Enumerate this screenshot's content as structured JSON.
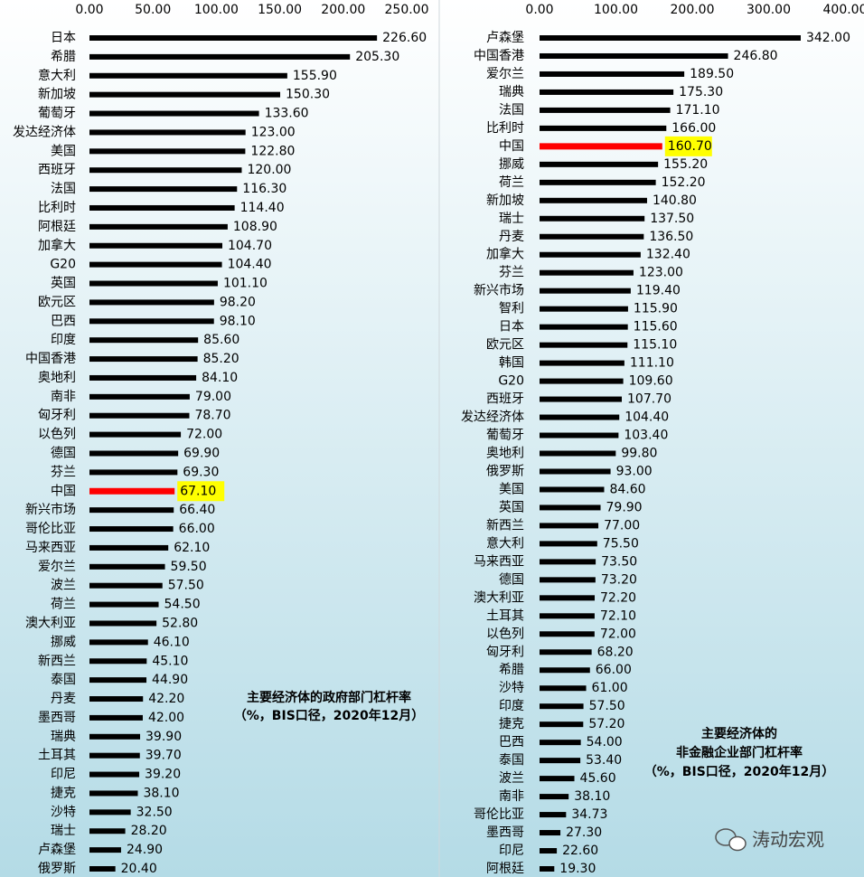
{
  "chart_data": [
    {
      "type": "bar",
      "orientation": "horizontal",
      "title": [
        "主要经济体的政府部门杠杆率",
        "（%，BIS口径，2020年12月）"
      ],
      "categories": [
        "日本",
        "希腊",
        "意大利",
        "新加坡",
        "葡萄牙",
        "发达经济体",
        "美国",
        "西班牙",
        "法国",
        "比利时",
        "阿根廷",
        "加拿大",
        "G20",
        "英国",
        "欧元区",
        "巴西",
        "印度",
        "中国香港",
        "奥地利",
        "南非",
        "匈牙利",
        "以色列",
        "德国",
        "芬兰",
        "中国",
        "新兴市场",
        "哥伦比亚",
        "马来西亚",
        "爱尔兰",
        "波兰",
        "荷兰",
        "澳大利亚",
        "挪威",
        "新西兰",
        "泰国",
        "丹麦",
        "墨西哥",
        "瑞典",
        "土耳其",
        "印尼",
        "捷克",
        "沙特",
        "瑞士",
        "卢森堡",
        "俄罗斯"
      ],
      "values": [
        226.6,
        205.3,
        155.9,
        150.3,
        133.6,
        123,
        122.8,
        120,
        116.3,
        114.4,
        108.9,
        104.7,
        104.4,
        101.1,
        98.2,
        98.1,
        85.6,
        85.2,
        84.1,
        79,
        78.7,
        72,
        69.9,
        69.3,
        67.1,
        66.4,
        66,
        62.1,
        59.5,
        57.5,
        54.5,
        52.8,
        46.1,
        45.1,
        44.9,
        42.2,
        42,
        39.9,
        39.7,
        39.2,
        38.1,
        32.5,
        28.2,
        24.9,
        20.4
      ],
      "value_labels": [
        "226.60",
        "205.30",
        "155.90",
        "150.30",
        "133.60",
        "123.00",
        "122.80",
        "120.00",
        "116.30",
        "114.40",
        "108.90",
        "104.70",
        "104.40",
        "101.10",
        "98.20",
        "98.10",
        "85.60",
        "85.20",
        "84.10",
        "79.00",
        "78.70",
        "72.00",
        "69.90",
        "69.30",
        "67.10",
        "66.40",
        "66.00",
        "62.10",
        "59.50",
        "57.50",
        "54.50",
        "52.80",
        "46.10",
        "45.10",
        "44.90",
        "42.20",
        "42.00",
        "39.90",
        "39.70",
        "39.20",
        "38.10",
        "32.50",
        "28.20",
        "24.90",
        "20.40"
      ],
      "color": "#000000",
      "colors": [
        "#000000",
        "#000000",
        "#000000",
        "#000000",
        "#000000",
        "#000000",
        "#000000",
        "#000000",
        "#000000",
        "#000000",
        "#000000",
        "#000000",
        "#000000",
        "#000000",
        "#000000",
        "#000000",
        "#000000",
        "#000000",
        "#000000",
        "#000000",
        "#000000",
        "#000000",
        "#000000",
        "#000000",
        "#ff0000",
        "#000000",
        "#000000",
        "#000000",
        "#000000",
        "#000000",
        "#000000",
        "#000000",
        "#000000",
        "#000000",
        "#000000",
        "#000000",
        "#000000",
        "#000000",
        "#000000",
        "#000000",
        "#000000",
        "#000000",
        "#000000",
        "#000000",
        "#000000"
      ],
      "label_highlight": "#ffff00",
      "xlim": [
        0,
        250
      ],
      "xticks": [
        {
          "value": 0,
          "label": "0.00"
        },
        {
          "value": 50,
          "label": "50.00"
        },
        {
          "value": 100,
          "label": "100.00"
        },
        {
          "value": 150,
          "label": "150.00"
        },
        {
          "value": 200,
          "label": "200.00"
        },
        {
          "value": 250,
          "label": "250.00"
        }
      ]
    },
    {
      "type": "bar",
      "orientation": "horizontal",
      "title": [
        "主要经济体的",
        "非金融企业部门杠杆率",
        "（%，BIS口径，2020年12月）"
      ],
      "categories": [
        "卢森堡",
        "中国香港",
        "爱尔兰",
        "瑞典",
        "法国",
        "比利时",
        "中国",
        "挪威",
        "荷兰",
        "新加坡",
        "瑞士",
        "丹麦",
        "加拿大",
        "芬兰",
        "新兴市场",
        "智利",
        "日本",
        "欧元区",
        "韩国",
        "G20",
        "西班牙",
        "发达经济体",
        "葡萄牙",
        "奥地利",
        "俄罗斯",
        "美国",
        "英国",
        "新西兰",
        "意大利",
        "马来西亚",
        "德国",
        "澳大利亚",
        "土耳其",
        "以色列",
        "匈牙利",
        "希腊",
        "沙特",
        "印度",
        "捷克",
        "巴西",
        "泰国",
        "波兰",
        "南非",
        "哥伦比亚",
        "墨西哥",
        "印尼",
        "阿根廷"
      ],
      "values": [
        342,
        246.8,
        189.5,
        175.3,
        171.1,
        166,
        160.7,
        155.2,
        152.2,
        140.8,
        137.5,
        136.5,
        132.4,
        123,
        119.4,
        115.9,
        115.6,
        115.1,
        111.1,
        109.6,
        107.7,
        104.4,
        103.4,
        99.8,
        93,
        84.6,
        79.9,
        77,
        75.5,
        73.5,
        73.2,
        72.2,
        72.1,
        72,
        68.2,
        66,
        61,
        57.5,
        57.2,
        54,
        53.4,
        45.6,
        38.1,
        34.73,
        27.3,
        22.6,
        19.3
      ],
      "value_labels": [
        "342.00",
        "246.80",
        "189.50",
        "175.30",
        "171.10",
        "166.00",
        "160.70",
        "155.20",
        "152.20",
        "140.80",
        "137.50",
        "136.50",
        "132.40",
        "123.00",
        "119.40",
        "115.90",
        "115.60",
        "115.10",
        "111.10",
        "109.60",
        "107.70",
        "104.40",
        "103.40",
        "99.80",
        "93.00",
        "84.60",
        "79.90",
        "77.00",
        "75.50",
        "73.50",
        "73.20",
        "72.20",
        "72.10",
        "72.00",
        "68.20",
        "66.00",
        "61.00",
        "57.50",
        "57.20",
        "54.00",
        "53.40",
        "45.60",
        "38.10",
        "34.73",
        "27.30",
        "22.60",
        "19.30"
      ],
      "color": "#000000",
      "colors": [
        "#000000",
        "#000000",
        "#000000",
        "#000000",
        "#000000",
        "#000000",
        "#ff0000",
        "#000000",
        "#000000",
        "#000000",
        "#000000",
        "#000000",
        "#000000",
        "#000000",
        "#000000",
        "#000000",
        "#000000",
        "#000000",
        "#000000",
        "#000000",
        "#000000",
        "#000000",
        "#000000",
        "#000000",
        "#000000",
        "#000000",
        "#000000",
        "#000000",
        "#000000",
        "#000000",
        "#000000",
        "#000000",
        "#000000",
        "#000000",
        "#000000",
        "#000000",
        "#000000",
        "#000000",
        "#000000",
        "#000000",
        "#000000",
        "#000000",
        "#000000",
        "#000000",
        "#000000",
        "#000000",
        "#000000"
      ],
      "label_highlight": "#ffff00",
      "xlim": [
        0,
        400
      ],
      "xticks": [
        {
          "value": 0,
          "label": "0.00"
        },
        {
          "value": 100,
          "label": "100.00"
        },
        {
          "value": 200,
          "label": "200.00"
        },
        {
          "value": 300,
          "label": "300.00"
        },
        {
          "value": 400,
          "label": "400.00"
        }
      ]
    }
  ],
  "watermark": "涛动宏观"
}
